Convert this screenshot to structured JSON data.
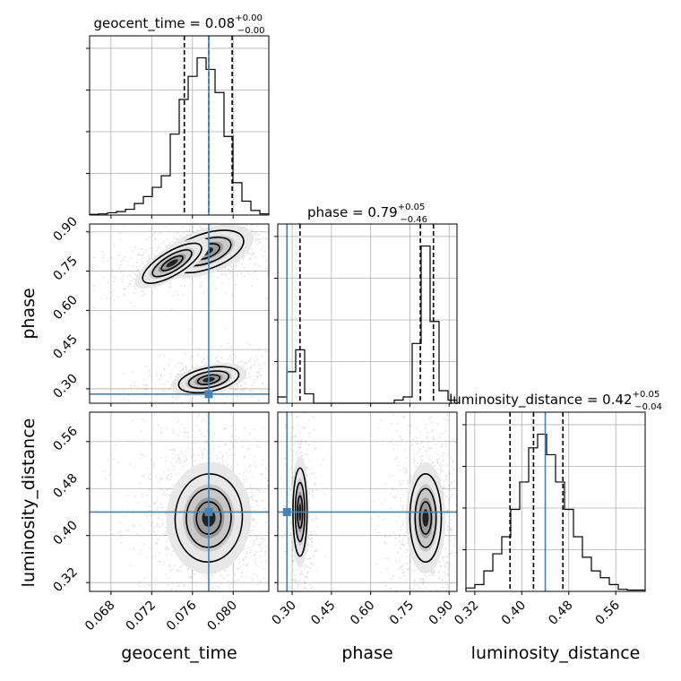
{
  "chart_data": {
    "type": "corner",
    "parameters": [
      "geocent_time",
      "phase",
      "luminosity_distance"
    ],
    "axis_labels": [
      "geocent_time",
      "phase",
      "luminosity_distance"
    ],
    "truth": {
      "geocent_time": 0.0776,
      "phase": 0.28,
      "luminosity_distance": 0.44
    },
    "truth_color": "#4682b4",
    "grid": true,
    "titles": [
      {
        "param": "geocent_time",
        "prefix": "geocent_time = ",
        "median": "0.08",
        "plus": "+0.00",
        "minus": "−0.00"
      },
      {
        "param": "phase",
        "prefix": "phase = ",
        "median": "0.79",
        "plus": "+0.05",
        "minus": "−0.46"
      },
      {
        "param": "luminosity_distance",
        "prefix": "luminosity_distance = ",
        "median": "0.42",
        "plus": "+0.05",
        "minus": "−0.04"
      }
    ],
    "ranges": {
      "geocent_time": [
        0.0659,
        0.0835
      ],
      "phase": [
        0.245,
        0.93
      ],
      "luminosity_distance": [
        0.305,
        0.61
      ]
    },
    "ticks": {
      "geocent_time": {
        "values": [
          0.068,
          0.072,
          0.076,
          0.08
        ],
        "labels": [
          "0.068",
          "0.072",
          "0.076",
          "0.080"
        ]
      },
      "phase": {
        "values": [
          0.3,
          0.45,
          0.6,
          0.75,
          0.9
        ],
        "labels": [
          "0.30",
          "0.45",
          "0.60",
          "0.75",
          "0.90"
        ]
      },
      "luminosity_distance": {
        "values": [
          0.32,
          0.4,
          0.48,
          0.56
        ],
        "labels": [
          "0.32",
          "0.40",
          "0.48",
          "0.56"
        ]
      }
    },
    "histograms": {
      "geocent_time": {
        "edges": [
          0.0659,
          0.06678,
          0.06766,
          0.06854,
          0.06942,
          0.0703,
          0.07118,
          0.07206,
          0.07294,
          0.07382,
          0.0747,
          0.07558,
          0.07646,
          0.07734,
          0.07822,
          0.0791,
          0.07998,
          0.08086,
          0.08174,
          0.08262,
          0.0835
        ],
        "counts": [
          0.3,
          0.5,
          1,
          1.5,
          2.5,
          5,
          8,
          12,
          17,
          35,
          50,
          60,
          68,
          63,
          53,
          34,
          14,
          6,
          2,
          0.5
        ],
        "quantiles": [
          0.0752,
          0.0776,
          0.0799
        ]
      },
      "phase": {
        "edges": [
          0.245,
          0.27925,
          0.3135,
          0.34775,
          0.382,
          0.41625,
          0.4505,
          0.48475,
          0.519,
          0.55325,
          0.5875,
          0.62175,
          0.656,
          0.69025,
          0.7245,
          0.75875,
          0.793,
          0.82725,
          0.8615,
          0.89575,
          0.93
        ],
        "counts": [
          2,
          10,
          17,
          3,
          0,
          0,
          0,
          0,
          0,
          0,
          0,
          0,
          0,
          1,
          2,
          19,
          50,
          26,
          4,
          1
        ],
        "quantiles": [
          0.33,
          0.79,
          0.84
        ]
      },
      "luminosity_distance": {
        "edges": [
          0.305,
          0.32025,
          0.3355,
          0.35075,
          0.366,
          0.38125,
          0.3965,
          0.41175,
          0.427,
          0.44225,
          0.4575,
          0.47275,
          0.488,
          0.50325,
          0.5185,
          0.53375,
          0.549,
          0.56425,
          0.5795,
          0.59475,
          0.61
        ],
        "counts": [
          0.5,
          1,
          3,
          5.5,
          8,
          12,
          16,
          21,
          23,
          20,
          16,
          12,
          8,
          5,
          3,
          2,
          1,
          0.3,
          0.2,
          0.2
        ],
        "quantiles": [
          0.38,
          0.42,
          0.47
        ]
      }
    },
    "density_peaks": {
      "phase_vs_geocent_time": [
        {
          "x": 0.0773,
          "y": 0.825,
          "sx": 0.0026,
          "sy": 0.045,
          "corr": 0.35,
          "weight": 0.58
        },
        {
          "x": 0.074,
          "y": 0.78,
          "sx": 0.0022,
          "sy": 0.03,
          "corr": 0.6,
          "weight": 0.12
        },
        {
          "x": 0.0776,
          "y": 0.335,
          "sx": 0.002,
          "sy": 0.03,
          "corr": 0.2,
          "weight": 0.3
        }
      ],
      "luminosity_distance_vs_geocent_time": [
        {
          "x": 0.0776,
          "y": 0.43,
          "sx": 0.0022,
          "sy": 0.05,
          "corr": -0.05,
          "weight": 1.0
        }
      ],
      "luminosity_distance_vs_phase": [
        {
          "x": 0.33,
          "y": 0.44,
          "sx": 0.018,
          "sy": 0.05,
          "corr": 0.0,
          "weight": 0.35
        },
        {
          "x": 0.81,
          "y": 0.43,
          "sx": 0.04,
          "sy": 0.05,
          "corr": 0.0,
          "weight": 0.65
        }
      ]
    }
  }
}
